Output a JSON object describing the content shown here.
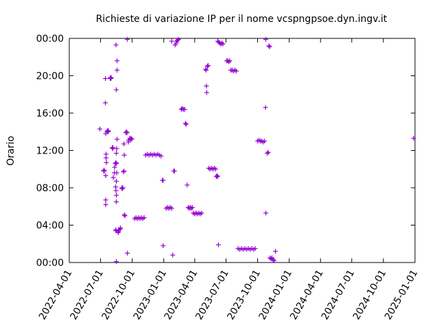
{
  "chart_data": {
    "type": "scatter",
    "title": "Richieste di variazione IP per il nome vcspngpsoe.dyn.ingv.it",
    "xlabel": "",
    "ylabel": "Orario",
    "x_ticks": [
      "2022-04-01",
      "2022-07-01",
      "2022-10-01",
      "2023-01-01",
      "2023-04-01",
      "2023-07-01",
      "2023-10-01",
      "2024-01-01",
      "2024-04-01",
      "2024-07-01",
      "2024-10-01",
      "2025-01-01"
    ],
    "y_ticks": [
      "00:00",
      "04:00",
      "08:00",
      "12:00",
      "16:00",
      "20:00",
      "00:00"
    ],
    "xlim": [
      "2022-04-01",
      "2025-01-01"
    ],
    "ylim_hours": [
      0,
      24
    ],
    "grid": false,
    "legend": "none",
    "marker": "plus",
    "color": "#9400d3",
    "points": [
      [
        "2022-06-29",
        14.3
      ],
      [
        "2022-07-15",
        17.1
      ],
      [
        "2022-07-15",
        19.7
      ],
      [
        "2022-07-17",
        11.6
      ],
      [
        "2022-07-17",
        11.2
      ],
      [
        "2022-07-18",
        10.7
      ],
      [
        "2022-07-16",
        13.8
      ],
      [
        "2022-07-16",
        9.3
      ],
      [
        "2022-07-16",
        6.7
      ],
      [
        "2022-07-16",
        6.2
      ],
      [
        "2022-07-20",
        14.0
      ],
      [
        "2022-07-21",
        14.1
      ],
      [
        "2022-07-22",
        14.1
      ],
      [
        "2022-07-23",
        14.0
      ],
      [
        "2022-07-24",
        14.1
      ],
      [
        "2022-07-10",
        9.8
      ],
      [
        "2022-07-11",
        9.9
      ],
      [
        "2022-07-12",
        9.8
      ],
      [
        "2022-07-29",
        19.7
      ],
      [
        "2022-07-30",
        19.8
      ],
      [
        "2022-07-31",
        19.7
      ],
      [
        "2022-08-01",
        19.8
      ],
      [
        "2022-08-04",
        12.3
      ],
      [
        "2022-08-05",
        12.2
      ],
      [
        "2022-08-06",
        12.3
      ],
      [
        "2022-08-07",
        9.1
      ],
      [
        "2022-08-10",
        9.6
      ],
      [
        "2022-08-11",
        10.2
      ],
      [
        "2022-08-13",
        10.6
      ],
      [
        "2022-08-15",
        10.7
      ],
      [
        "2022-08-16",
        10.6
      ],
      [
        "2022-08-15",
        23.3
      ],
      [
        "2022-08-18",
        21.6
      ],
      [
        "2022-08-18",
        20.6
      ],
      [
        "2022-08-16",
        18.5
      ],
      [
        "2022-08-18",
        13.2
      ],
      [
        "2022-08-17",
        12.2
      ],
      [
        "2022-08-16",
        11.7
      ],
      [
        "2022-08-17",
        9.6
      ],
      [
        "2022-08-16",
        8.7
      ],
      [
        "2022-08-14",
        8.1
      ],
      [
        "2022-08-15",
        7.7
      ],
      [
        "2022-08-16",
        7.2
      ],
      [
        "2022-08-16",
        6.5
      ],
      [
        "2022-08-14",
        3.5
      ],
      [
        "2022-08-15",
        3.4
      ],
      [
        "2022-08-16",
        0.1
      ],
      [
        "2022-08-21",
        3.2
      ],
      [
        "2022-08-22",
        3.3
      ],
      [
        "2022-08-24",
        3.5
      ],
      [
        "2022-08-27",
        3.6
      ],
      [
        "2022-08-28",
        3.7
      ],
      [
        "2022-09-01",
        8.0
      ],
      [
        "2022-09-02",
        7.9
      ],
      [
        "2022-09-04",
        8.0
      ],
      [
        "2022-09-06",
        9.7
      ],
      [
        "2022-09-07",
        9.8
      ],
      [
        "2022-09-08",
        11.5
      ],
      [
        "2022-09-07",
        12.7
      ],
      [
        "2022-09-08",
        5.1
      ],
      [
        "2022-09-10",
        5.0
      ],
      [
        "2022-09-13",
        13.9
      ],
      [
        "2022-09-14",
        14.0
      ],
      [
        "2022-09-16",
        13.9
      ],
      [
        "2022-09-17",
        23.9
      ],
      [
        "2022-09-20",
        12.9
      ],
      [
        "2022-09-17",
        1.0
      ],
      [
        "2022-09-21",
        13.1
      ],
      [
        "2022-09-24",
        13.3
      ],
      [
        "2022-09-26",
        13.2
      ],
      [
        "2022-09-28",
        13.3
      ],
      [
        "2022-09-30",
        13.2
      ],
      [
        "2022-10-08",
        4.7
      ],
      [
        "2022-10-12",
        4.8
      ],
      [
        "2022-10-16",
        4.7
      ],
      [
        "2022-10-20",
        4.8
      ],
      [
        "2022-10-24",
        4.7
      ],
      [
        "2022-10-28",
        4.8
      ],
      [
        "2022-11-01",
        4.7
      ],
      [
        "2022-11-05",
        4.8
      ],
      [
        "2022-11-09",
        11.5
      ],
      [
        "2022-11-14",
        11.6
      ],
      [
        "2022-11-19",
        11.5
      ],
      [
        "2022-11-24",
        11.6
      ],
      [
        "2022-11-29",
        11.5
      ],
      [
        "2022-12-04",
        11.6
      ],
      [
        "2022-12-09",
        11.5
      ],
      [
        "2022-12-14",
        11.6
      ],
      [
        "2022-12-19",
        11.5
      ],
      [
        "2022-12-24",
        11.4
      ],
      [
        "2022-12-28",
        8.8
      ],
      [
        "2022-12-30",
        8.8
      ],
      [
        "2022-12-30",
        1.8
      ],
      [
        "2023-01-08",
        5.8
      ],
      [
        "2023-01-12",
        5.9
      ],
      [
        "2023-01-16",
        5.8
      ],
      [
        "2023-01-20",
        5.9
      ],
      [
        "2023-01-24",
        5.8
      ],
      [
        "2023-01-24",
        23.7
      ],
      [
        "2023-01-27",
        0.8
      ],
      [
        "2023-01-30",
        9.8
      ],
      [
        "2023-02-01",
        9.8
      ],
      [
        "2023-02-03",
        23.3
      ],
      [
        "2023-02-06",
        23.5
      ],
      [
        "2023-02-08",
        23.7
      ],
      [
        "2023-02-10",
        23.8
      ],
      [
        "2023-02-13",
        23.9
      ],
      [
        "2023-02-21",
        16.4
      ],
      [
        "2023-02-24",
        16.5
      ],
      [
        "2023-02-27",
        16.4
      ],
      [
        "2023-03-03",
        16.4
      ],
      [
        "2023-03-05",
        14.9
      ],
      [
        "2023-03-07",
        14.8
      ],
      [
        "2023-03-10",
        8.3
      ],
      [
        "2023-03-13",
        5.9
      ],
      [
        "2023-03-16",
        5.8
      ],
      [
        "2023-03-19",
        5.9
      ],
      [
        "2023-03-22",
        5.8
      ],
      [
        "2023-03-25",
        5.9
      ],
      [
        "2023-03-28",
        5.3
      ],
      [
        "2023-04-01",
        5.2
      ],
      [
        "2023-04-05",
        5.3
      ],
      [
        "2023-04-09",
        5.2
      ],
      [
        "2023-04-13",
        5.3
      ],
      [
        "2023-04-17",
        5.2
      ],
      [
        "2023-04-21",
        5.3
      ],
      [
        "2023-05-03",
        20.7
      ],
      [
        "2023-05-04",
        20.6
      ],
      [
        "2023-05-05",
        18.9
      ],
      [
        "2023-05-06",
        18.2
      ],
      [
        "2023-05-08",
        21.0
      ],
      [
        "2023-05-10",
        21.1
      ],
      [
        "2023-05-12",
        10.1
      ],
      [
        "2023-05-16",
        10.0
      ],
      [
        "2023-05-20",
        10.1
      ],
      [
        "2023-05-24",
        10.0
      ],
      [
        "2023-05-28",
        10.1
      ],
      [
        "2023-06-01",
        10.0
      ],
      [
        "2023-06-03",
        9.2
      ],
      [
        "2023-06-05",
        9.3
      ],
      [
        "2023-06-07",
        9.2
      ],
      [
        "2023-06-09",
        1.9
      ],
      [
        "2023-06-07",
        23.7
      ],
      [
        "2023-06-10",
        23.6
      ],
      [
        "2023-06-13",
        23.5
      ],
      [
        "2023-06-16",
        23.4
      ],
      [
        "2023-06-19",
        23.5
      ],
      [
        "2023-06-22",
        23.4
      ],
      [
        "2023-07-03",
        21.6
      ],
      [
        "2023-07-06",
        21.6
      ],
      [
        "2023-07-09",
        21.5
      ],
      [
        "2023-07-12",
        21.6
      ],
      [
        "2023-07-15",
        20.6
      ],
      [
        "2023-07-19",
        20.6
      ],
      [
        "2023-07-23",
        20.5
      ],
      [
        "2023-07-27",
        20.6
      ],
      [
        "2023-07-31",
        20.5
      ],
      [
        "2023-08-05",
        1.5
      ],
      [
        "2023-08-10",
        1.4
      ],
      [
        "2023-08-15",
        1.5
      ],
      [
        "2023-08-20",
        1.4
      ],
      [
        "2023-08-25",
        1.5
      ],
      [
        "2023-08-30",
        1.4
      ],
      [
        "2023-09-04",
        1.5
      ],
      [
        "2023-09-09",
        1.4
      ],
      [
        "2023-09-14",
        1.5
      ],
      [
        "2023-09-19",
        1.4
      ],
      [
        "2023-09-24",
        1.5
      ],
      [
        "2023-10-01",
        13.0
      ],
      [
        "2023-10-05",
        13.1
      ],
      [
        "2023-10-09",
        13.0
      ],
      [
        "2023-10-13",
        13.0
      ],
      [
        "2023-10-17",
        12.9
      ],
      [
        "2023-10-21",
        13.0
      ],
      [
        "2023-10-24",
        16.6
      ],
      [
        "2023-10-25",
        5.3
      ],
      [
        "2023-10-25",
        23.9
      ],
      [
        "2023-10-29",
        11.7
      ],
      [
        "2023-11-01",
        11.8
      ],
      [
        "2023-11-03",
        23.2
      ],
      [
        "2023-11-05",
        23.1
      ],
      [
        "2023-11-06",
        0.5
      ],
      [
        "2023-11-09",
        0.4
      ],
      [
        "2023-11-12",
        0.5
      ],
      [
        "2023-11-15",
        0.3
      ],
      [
        "2023-11-18",
        0.2
      ],
      [
        "2023-11-22",
        1.2
      ],
      [
        "2024-12-28",
        13.3
      ]
    ]
  }
}
